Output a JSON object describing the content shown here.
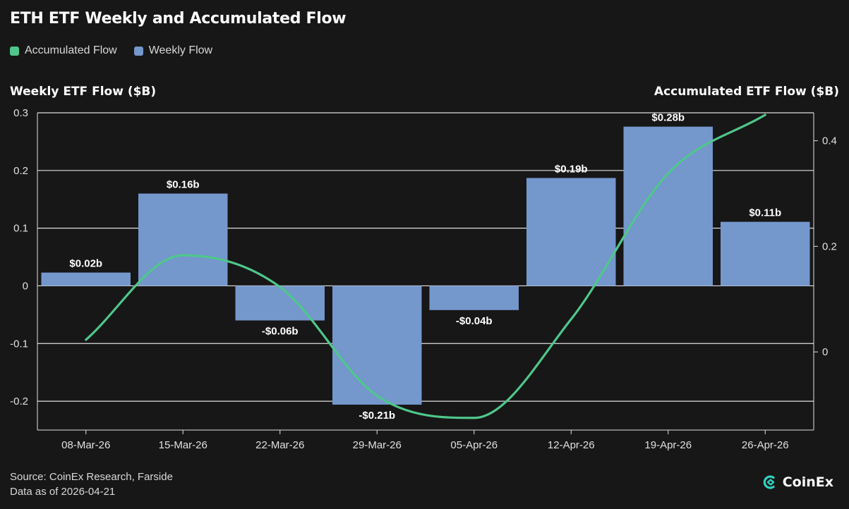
{
  "title": "ETH ETF Weekly and Accumulated Flow",
  "legend": {
    "accumulated": {
      "label": "Accumulated Flow",
      "color": "#4fc78b"
    },
    "weekly": {
      "label": "Weekly Flow",
      "color": "#7497cc"
    }
  },
  "footer": {
    "source": "Source: CoinEx Research, Farside",
    "date": "Data as of 2026-04-21"
  },
  "logo": {
    "text": "CoinEx"
  },
  "chart_data": {
    "type": "bar",
    "categories": [
      "08-Mar-26",
      "15-Mar-26",
      "22-Mar-26",
      "29-Mar-26",
      "05-Apr-26",
      "12-Apr-26",
      "19-Apr-26",
      "26-Apr-26"
    ],
    "series": [
      {
        "name": "Weekly Flow",
        "axis": "left",
        "type": "bar",
        "values": [
          0.023,
          0.16,
          -0.06,
          -0.206,
          -0.042,
          0.187,
          0.276,
          0.111
        ],
        "labels": [
          "$0.02b",
          "$0.16b",
          "-$0.06b",
          "-$0.21b",
          "-$0.04b",
          "$0.19b",
          "$0.28b",
          "$0.11b"
        ],
        "color": "#7497cc"
      },
      {
        "name": "Accumulated Flow",
        "axis": "right",
        "type": "line",
        "values": [
          0.023,
          0.183,
          0.123,
          -0.083,
          -0.125,
          0.062,
          0.338,
          0.449
        ],
        "color": "#4fc78b"
      }
    ],
    "ylabel": "Weekly ETF Flow ($B)",
    "ylabel_right": "Accumulated ETF Flow ($B)",
    "ylim": [
      -0.25,
      0.3
    ],
    "ylim_right": [
      -0.148,
      0.4529
    ],
    "yticks": [
      -0.2,
      -0.1,
      0,
      0.1,
      0.2,
      0.3
    ],
    "yticks_right": [
      0,
      0.2,
      0.4
    ],
    "ytick_labels": [
      "-0.2",
      "-0.1",
      "0",
      "0.1",
      "0.2",
      "0.3"
    ],
    "ytick_labels_right": [
      "0",
      "0.2",
      "0.4"
    ],
    "grid": true
  }
}
